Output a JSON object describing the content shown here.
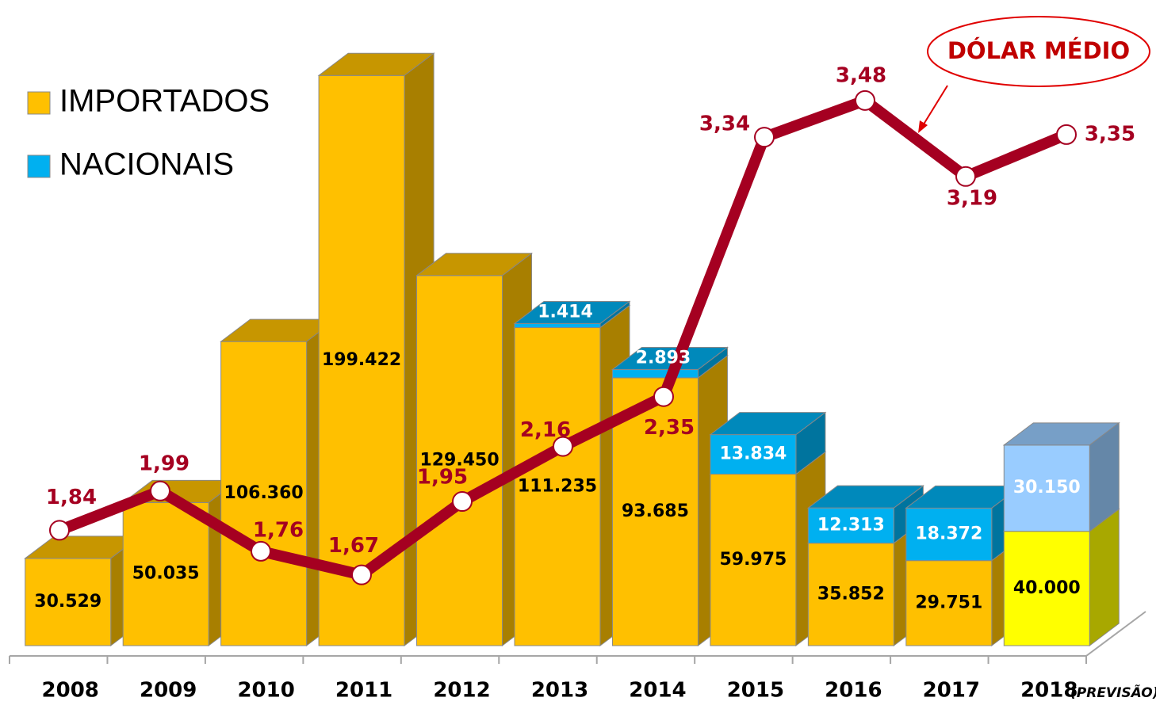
{
  "chart_data": {
    "type": "bar3d_line",
    "categories": [
      "2008",
      "2009",
      "2010",
      "2011",
      "2012",
      "2013",
      "2014",
      "2015",
      "2016",
      "2017",
      "2018"
    ],
    "category_note": "(PREVISÃO)",
    "series": [
      {
        "name": "IMPORTADOS",
        "color": "#FFC000",
        "colors": [
          "#FFC000",
          "#FFC000",
          "#FFC000",
          "#FFC000",
          "#FFC000",
          "#FFC000",
          "#FFC000",
          "#FFC000",
          "#FFC000",
          "#FFC000",
          "#FFFF00"
        ],
        "values": [
          30529,
          50035,
          106360,
          199422,
          129450,
          111235,
          93685,
          59975,
          35852,
          29751,
          40000
        ],
        "value_labels": [
          "30.529",
          "50.035",
          "106.360",
          "199.422",
          "129.450",
          "111.235",
          "93.685",
          "59.975",
          "35.852",
          "29.751",
          "40.000"
        ]
      },
      {
        "name": "NACIONAIS",
        "color": "#00B0F0",
        "colors": [
          "#00B0F0",
          "#00B0F0",
          "#00B0F0",
          "#00B0F0",
          "#00B0F0",
          "#00B0F0",
          "#00B0F0",
          "#00B0F0",
          "#00B0F0",
          "#00B0F0",
          "#99CCFF"
        ],
        "values": [
          null,
          null,
          null,
          null,
          null,
          1414,
          2893,
          13834,
          12313,
          18372,
          30150
        ],
        "value_labels": [
          null,
          null,
          null,
          null,
          null,
          "1.414",
          "2.893",
          "13.834",
          "12.313",
          "18.372",
          "30.150"
        ]
      },
      {
        "name": "DÓLAR MÉDIO",
        "color": "#A50021",
        "axis": "y2",
        "values": [
          1.84,
          1.99,
          1.76,
          1.67,
          1.95,
          2.16,
          2.35,
          3.34,
          3.48,
          3.19,
          3.35
        ],
        "value_labels": [
          "1,84",
          "1,99",
          "1,76",
          "1,67",
          "1,95",
          "2,16",
          "2,35",
          "3,34",
          "3,48",
          "3,19",
          "3,35"
        ]
      }
    ],
    "ylim": [
      0,
      220000
    ],
    "y2lim": [
      1.4,
      3.8
    ]
  }
}
